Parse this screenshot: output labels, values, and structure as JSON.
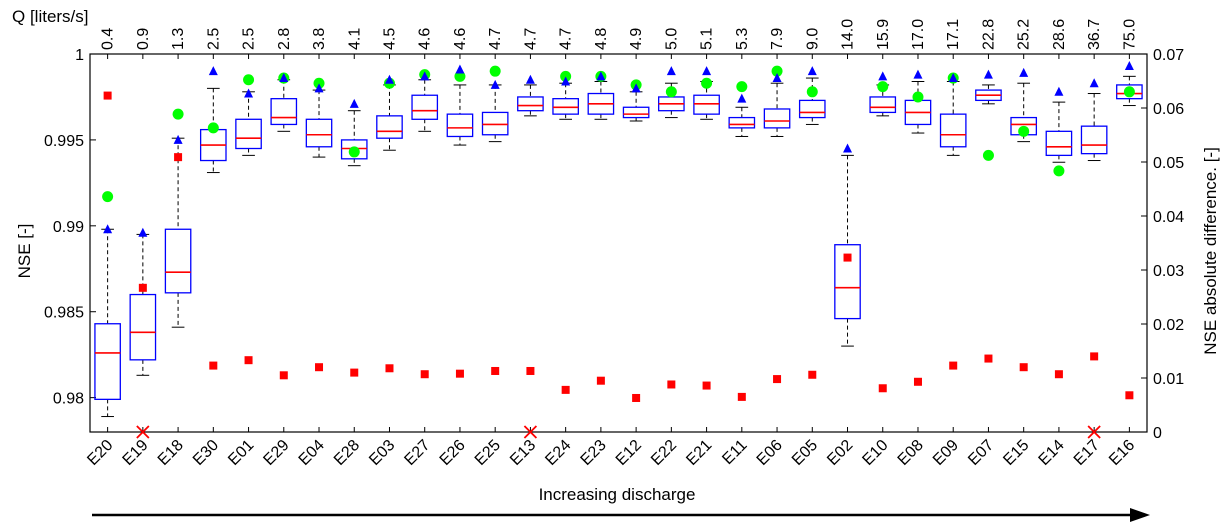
{
  "chart_data": {
    "type": "box",
    "categories": [
      "E20",
      "E19",
      "E18",
      "E30",
      "E01",
      "E29",
      "E04",
      "E28",
      "E03",
      "E27",
      "E26",
      "E25",
      "E13",
      "E24",
      "E23",
      "E12",
      "E22",
      "E21",
      "E11",
      "E06",
      "E05",
      "E02",
      "E10",
      "E08",
      "E09",
      "E07",
      "E15",
      "E14",
      "E17",
      "E16"
    ],
    "q_label": "Q [liters/s]",
    "q_values": [
      "0.4",
      "0.9",
      "1.3",
      "2.5",
      "2.5",
      "2.8",
      "3.8",
      "4.1",
      "4.5",
      "4.6",
      "4.6",
      "4.7",
      "4.7",
      "4.7",
      "4.8",
      "4.9",
      "5.0",
      "5.1",
      "5.3",
      "7.9",
      "9.0",
      "14.0",
      "15.9",
      "17.0",
      "17.1",
      "22.8",
      "25.2",
      "28.6",
      "36.7",
      "75.0"
    ],
    "ylabel": "NSE [-]",
    "y2label": "NSE absolute difference. [-]",
    "xlabel": "Increasing discharge",
    "ylim": [
      0.978,
      1.0
    ],
    "y2lim": [
      0,
      0.07
    ],
    "yticks": [
      "0.98",
      "0.985",
      "0.99",
      "0.995",
      "1"
    ],
    "y2ticks": [
      "0",
      "0.01",
      "0.02",
      "0.03",
      "0.04",
      "0.05",
      "0.06",
      "0.07"
    ],
    "boxes": [
      {
        "wlo": 0.9789,
        "q1": 0.9799,
        "med": 0.9826,
        "q3": 0.9843,
        "whi": 0.9898
      },
      {
        "wlo": 0.9813,
        "q1": 0.9822,
        "med": 0.9838,
        "q3": 0.986,
        "whi": 0.9895
      },
      {
        "wlo": 0.9841,
        "q1": 0.9861,
        "med": 0.9873,
        "q3": 0.9898,
        "whi": 0.9951
      },
      {
        "wlo": 0.9931,
        "q1": 0.9938,
        "med": 0.9947,
        "q3": 0.9956,
        "whi": 0.998
      },
      {
        "wlo": 0.9941,
        "q1": 0.9945,
        "med": 0.9951,
        "q3": 0.9962,
        "whi": 0.9978
      },
      {
        "wlo": 0.9955,
        "q1": 0.9959,
        "med": 0.9963,
        "q3": 0.9974,
        "whi": 0.9985
      },
      {
        "wlo": 0.994,
        "q1": 0.9946,
        "med": 0.9953,
        "q3": 0.9962,
        "whi": 0.9979
      },
      {
        "wlo": 0.9935,
        "q1": 0.9939,
        "med": 0.9945,
        "q3": 0.995,
        "whi": 0.9967
      },
      {
        "wlo": 0.9944,
        "q1": 0.9951,
        "med": 0.9955,
        "q3": 0.9964,
        "whi": 0.9982
      },
      {
        "wlo": 0.9955,
        "q1": 0.9962,
        "med": 0.9967,
        "q3": 0.9976,
        "whi": 0.9985
      },
      {
        "wlo": 0.9947,
        "q1": 0.9952,
        "med": 0.9957,
        "q3": 0.9965,
        "whi": 0.9982
      },
      {
        "wlo": 0.9949,
        "q1": 0.9953,
        "med": 0.9959,
        "q3": 0.9966,
        "whi": 0.9982
      },
      {
        "wlo": 0.9964,
        "q1": 0.9967,
        "med": 0.997,
        "q3": 0.9975,
        "whi": 0.9982
      },
      {
        "wlo": 0.9962,
        "q1": 0.9965,
        "med": 0.9969,
        "q3": 0.9974,
        "whi": 0.9983
      },
      {
        "wlo": 0.9962,
        "q1": 0.9965,
        "med": 0.9971,
        "q3": 0.9977,
        "whi": 0.9984
      },
      {
        "wlo": 0.9961,
        "q1": 0.9963,
        "med": 0.9965,
        "q3": 0.9969,
        "whi": 0.9978
      },
      {
        "wlo": 0.9963,
        "q1": 0.9967,
        "med": 0.9971,
        "q3": 0.9975,
        "whi": 0.9983
      },
      {
        "wlo": 0.9962,
        "q1": 0.9965,
        "med": 0.9971,
        "q3": 0.9976,
        "whi": 0.9984
      },
      {
        "wlo": 0.9952,
        "q1": 0.9957,
        "med": 0.9959,
        "q3": 0.9963,
        "whi": 0.9969
      },
      {
        "wlo": 0.9952,
        "q1": 0.9957,
        "med": 0.9961,
        "q3": 0.9968,
        "whi": 0.9983
      },
      {
        "wlo": 0.9959,
        "q1": 0.9963,
        "med": 0.9966,
        "q3": 0.9973,
        "whi": 0.9986
      },
      {
        "wlo": 0.983,
        "q1": 0.9846,
        "med": 0.9864,
        "q3": 0.9889,
        "whi": 0.9941
      },
      {
        "wlo": 0.9964,
        "q1": 0.9966,
        "med": 0.9969,
        "q3": 0.9975,
        "whi": 0.9982
      },
      {
        "wlo": 0.9954,
        "q1": 0.9959,
        "med": 0.9966,
        "q3": 0.9973,
        "whi": 0.9984
      },
      {
        "wlo": 0.9941,
        "q1": 0.9946,
        "med": 0.9953,
        "q3": 0.9965,
        "whi": 0.9984
      },
      {
        "wlo": 0.9971,
        "q1": 0.9973,
        "med": 0.9976,
        "q3": 0.9979,
        "whi": 0.9982
      },
      {
        "wlo": 0.9949,
        "q1": 0.9953,
        "med": 0.9959,
        "q3": 0.9963,
        "whi": 0.9983
      },
      {
        "wlo": 0.9937,
        "q1": 0.9941,
        "med": 0.9946,
        "q3": 0.9955,
        "whi": 0.9972
      },
      {
        "wlo": 0.9938,
        "q1": 0.9942,
        "med": 0.9947,
        "q3": 0.9958,
        "whi": 0.9977
      },
      {
        "wlo": 0.997,
        "q1": 0.9974,
        "med": 0.9977,
        "q3": 0.9982,
        "whi": 0.9987
      }
    ],
    "blue_triangles": [
      0.9898,
      0.9896,
      0.995,
      0.999,
      0.9977,
      0.9986,
      0.998,
      0.9971,
      0.9985,
      0.9987,
      0.9991,
      0.9982,
      0.9985,
      0.9984,
      0.9987,
      0.998,
      0.999,
      0.999,
      0.9974,
      0.9986,
      0.999,
      0.9945,
      0.9987,
      0.9988,
      0.9986,
      0.9988,
      0.9989,
      0.9978,
      0.9983,
      0.9993
    ],
    "green_circles": [
      0.9917,
      null,
      0.9965,
      0.9957,
      0.9985,
      0.9986,
      0.9983,
      0.9943,
      0.9983,
      0.9988,
      0.9987,
      0.999,
      null,
      0.9987,
      0.9987,
      0.9982,
      0.9978,
      0.9983,
      0.9981,
      0.999,
      0.9978,
      null,
      0.9981,
      0.9975,
      0.9986,
      0.9941,
      0.9955,
      0.9932,
      null,
      0.9978
    ],
    "red_squares": [
      0.0623,
      0.0267,
      0.0509,
      0.0123,
      0.0133,
      0.0105,
      0.012,
      0.011,
      0.0118,
      0.0107,
      0.0108,
      0.0113,
      0.0113,
      0.0078,
      0.0095,
      0.0063,
      0.0088,
      0.0086,
      0.0065,
      0.0098,
      0.0106,
      0.0323,
      0.0081,
      0.0093,
      0.0123,
      0.0136,
      0.012,
      0.0107,
      0.014,
      0.0068
    ],
    "red_crosses": [
      1,
      12,
      28
    ],
    "colors": {
      "box": "#0000ff",
      "median": "#ff0000",
      "whisker": "#000000",
      "triangle": "#0000ff",
      "circle": "#00ff00",
      "square": "#ff0000",
      "cross": "#ff0000"
    }
  }
}
